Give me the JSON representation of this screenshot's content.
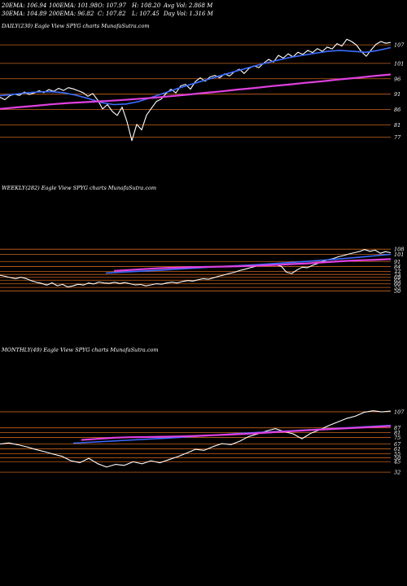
{
  "header": {
    "row1": [
      "20EMA: 106.94",
      "100EMA: 101.98",
      "O: 107.97",
      "H: 108.20",
      "Avg Vol: 2.868 M"
    ],
    "row2": [
      "30EMA: 104.89",
      "200EMA: 96.82",
      "C: 107.82",
      "L: 107.45",
      "Day Vol: 1.316 M"
    ]
  },
  "colors": {
    "background": "#000000",
    "price": "#ffffff",
    "level_lines": "#c8641e",
    "ema_fast": "#3a6cff",
    "ema_slow": "#e040e0",
    "ema_other": "#c8c8c8",
    "ema_brown": "#b8860b"
  },
  "chart_data": [
    {
      "type": "line",
      "title": "DAILY(230) Eagle  View  SPYG charts MunafaSutra.com",
      "yticks": [
        "107",
        "101",
        "96",
        "91",
        "86",
        "81",
        "77"
      ],
      "ylim": [
        74,
        111
      ],
      "grid": false,
      "series": [
        {
          "role": "price",
          "color": "#ffffff",
          "values": [
            90.0,
            89.2,
            90.5,
            91.0,
            90.6,
            91.7,
            90.9,
            91.4,
            92.1,
            91.5,
            92.5,
            91.9,
            92.9,
            92.2,
            93.1,
            92.7,
            92.1,
            91.5,
            90.3,
            91.2,
            89.1,
            86.2,
            87.6,
            85.4,
            84.1,
            86.8,
            82.1,
            75.9,
            81.2,
            79.4,
            84.2,
            86.4,
            88.6,
            89.4,
            91.2,
            92.6,
            91.4,
            93.7,
            94.2,
            92.6,
            95.1,
            96.3,
            95.2,
            96.6,
            97.1,
            96.3,
            97.6,
            96.9,
            98.3,
            99.1,
            97.7,
            99.4,
            100.2,
            99.6,
            101.1,
            102.3,
            101.4,
            103.6,
            102.7,
            104.1,
            103.1,
            104.6,
            103.9,
            105.2,
            104.5,
            105.8,
            104.9,
            106.3,
            105.7,
            107.4,
            106.6,
            108.8,
            108.1,
            106.9,
            104.8,
            103.3,
            105.4,
            107.2,
            108.1,
            107.5,
            107.8
          ]
        },
        {
          "role": "ema",
          "color": "#3a6cff",
          "values": [
            90.5,
            90.9,
            91.4,
            91.7,
            91.8,
            91.5,
            90.7,
            89.6,
            88.3,
            87.6,
            87.8,
            88.6,
            89.9,
            91.3,
            92.7,
            94.0,
            95.2,
            96.4,
            97.6,
            98.8,
            99.9,
            101.0,
            102.0,
            102.9,
            103.6,
            104.3,
            104.9,
            105.2,
            104.9,
            104.6,
            105.2,
            106.1
          ]
        },
        {
          "role": "ema",
          "color": "#e040e0",
          "values": [
            86.2,
            86.7,
            87.2,
            87.7,
            88.1,
            88.4,
            88.7,
            89.0,
            89.4,
            89.8,
            90.3,
            90.8,
            91.4,
            91.9,
            92.5,
            93.0,
            93.6,
            94.1,
            94.7,
            95.2,
            95.8,
            96.3,
            96.9,
            97.4
          ]
        }
      ]
    },
    {
      "type": "line",
      "title": "WEEKLY(282) Eagle  View  SPYG charts MunafaSutra.com",
      "yticks": [
        "108",
        "101",
        "91",
        "84",
        "77",
        "73",
        "69",
        "65",
        "60",
        "55",
        "50"
      ],
      "ylim": [
        45,
        115
      ],
      "grid": false,
      "series": [
        {
          "role": "price",
          "color": "#ffffff",
          "values": [
            72.0,
            70.4,
            68.6,
            67.2,
            69.1,
            67.4,
            64.3,
            62.1,
            60.6,
            58.2,
            61.4,
            57.3,
            59.2,
            55.6,
            57.1,
            59.4,
            58.3,
            61.2,
            59.8,
            62.5,
            61.1,
            60.7,
            62.2,
            60.5,
            61.8,
            60.1,
            58.4,
            59.1,
            57.2,
            58.6,
            60.1,
            59.4,
            61.2,
            62.3,
            61.1,
            63.2,
            64.5,
            63.8,
            65.6,
            67.1,
            66.3,
            68.4,
            70.5,
            72.2,
            74.3,
            76.1,
            78.4,
            80.2,
            82.3,
            84.1,
            86.2,
            85.4,
            87.5,
            86.1,
            84.3,
            76.1,
            74.3,
            79.2,
            83.1,
            82.4,
            85.6,
            88.3,
            91.2,
            93.5,
            95.1,
            97.6,
            99.3,
            101.5,
            103.2,
            104.8,
            107.5,
            105.1,
            106.7,
            102.4,
            104.6,
            103.1
          ]
        },
        {
          "role": "ema",
          "color": "#3a6cff",
          "values": [
            75.0,
            76.0,
            77.0,
            78.0,
            79.0,
            80.0,
            81.2,
            82.4,
            83.4,
            84.4,
            85.4,
            86.4,
            87.6,
            88.8,
            90.0,
            91.4,
            92.8,
            94.2,
            95.8,
            97.4,
            99.2,
            101.0
          ]
        },
        {
          "role": "ema",
          "color": "#e040e0",
          "values": [
            78.0,
            79.0,
            80.2,
            81.4,
            82.2,
            82.8,
            83.2,
            83.6,
            84.0,
            84.4,
            84.8,
            85.6,
            86.4,
            87.4,
            88.4,
            89.6,
            90.8,
            92.0,
            92.8,
            93.4,
            94.2
          ]
        }
      ]
    },
    {
      "type": "line",
      "title": "MONTHLY(49) Eagle  View  SPYG charts MunafaSutra.com",
      "yticks": [
        "107",
        "87",
        "81",
        "75",
        "67",
        "61",
        "55",
        "50",
        "45",
        "32"
      ],
      "ylim": [
        22,
        115
      ],
      "grid": false,
      "series": [
        {
          "role": "price",
          "color": "#ffffff",
          "values": [
            67.0,
            68.3,
            66.1,
            63.4,
            60.2,
            57.5,
            54.3,
            51.6,
            46.1,
            43.8,
            49.2,
            42.5,
            38.3,
            41.6,
            40.4,
            44.8,
            42.3,
            46.2,
            43.6,
            47.5,
            51.2,
            55.6,
            60.3,
            59.1,
            63.7,
            67.5,
            66.2,
            70.4,
            76.3,
            79.5,
            83.2,
            86.1,
            82.3,
            79.6,
            73.5,
            80.2,
            84.6,
            89.7,
            94.2,
            98.6,
            101.5,
            106.3,
            108.2,
            106.8,
            107.9
          ]
        },
        {
          "role": "ema",
          "color": "#3a6cff",
          "values": [
            68.0,
            69.0,
            70.0,
            71.0,
            72.0,
            73.0,
            74.0,
            75.2,
            76.4,
            77.6,
            78.8,
            80.0,
            81.0,
            82.0,
            83.0,
            84.0,
            85.0,
            86.0,
            87.0,
            88.0,
            89.0,
            90.0
          ]
        },
        {
          "role": "ema",
          "color": "#e040e0",
          "values": [
            72.0,
            73.4,
            74.8,
            75.4,
            75.6,
            76.0,
            76.4,
            77.0,
            77.8,
            78.6,
            79.4,
            80.6,
            81.8,
            83.0,
            84.2,
            85.2,
            86.2,
            87.2,
            88.2,
            89.2
          ]
        }
      ]
    }
  ]
}
